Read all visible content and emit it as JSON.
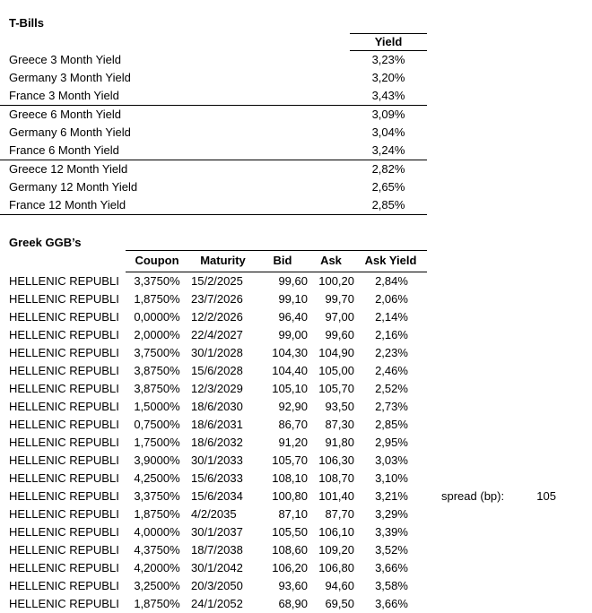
{
  "tbills": {
    "title": "T-Bills",
    "yield_header": "Yield",
    "group_3m": [
      {
        "label": "Greece 3 Month Yield",
        "value": "3,23%"
      },
      {
        "label": "Germany 3 Month Yield",
        "value": "3,20%"
      },
      {
        "label": "France 3 Month Yield",
        "value": "3,43%"
      }
    ],
    "group_6m": [
      {
        "label": "Greece 6 Month Yield",
        "value": "3,09%"
      },
      {
        "label": "Germany 6 Month Yield",
        "value": "3,04%"
      },
      {
        "label": "France 6 Month Yield",
        "value": "3,24%"
      }
    ],
    "group_12m": [
      {
        "label": "Greece 12 Month Yield",
        "value": "2,82%"
      },
      {
        "label": "Germany 12 Month Yield",
        "value": "2,65%"
      },
      {
        "label": "France 12 Month Yield",
        "value": "2,85%"
      }
    ]
  },
  "ggb": {
    "title": "Greek GGB’s",
    "headers": {
      "coupon": "Coupon",
      "maturity": "Maturity",
      "bid": "Bid",
      "ask": "Ask",
      "ask_yield": "Ask Yield"
    },
    "rows": [
      {
        "name": "HELLENIC REPUBLI",
        "coupon": "3,3750%",
        "maturity": "15/2/2025",
        "bid": "99,60",
        "ask": "100,20",
        "ask_yield": "2,84%"
      },
      {
        "name": "HELLENIC REPUBLI",
        "coupon": "1,8750%",
        "maturity": "23/7/2026",
        "bid": "99,10",
        "ask": "99,70",
        "ask_yield": "2,06%"
      },
      {
        "name": "HELLENIC REPUBLI",
        "coupon": "0,0000%",
        "maturity": "12/2/2026",
        "bid": "96,40",
        "ask": "97,00",
        "ask_yield": "2,14%"
      },
      {
        "name": "HELLENIC REPUBLI",
        "coupon": "2,0000%",
        "maturity": "22/4/2027",
        "bid": "99,00",
        "ask": "99,60",
        "ask_yield": "2,16%"
      },
      {
        "name": "HELLENIC REPUBLI",
        "coupon": "3,7500%",
        "maturity": "30/1/2028",
        "bid": "104,30",
        "ask": "104,90",
        "ask_yield": "2,23%"
      },
      {
        "name": "HELLENIC REPUBLI",
        "coupon": "3,8750%",
        "maturity": "15/6/2028",
        "bid": "104,40",
        "ask": "105,00",
        "ask_yield": "2,46%"
      },
      {
        "name": "HELLENIC REPUBLI",
        "coupon": "3,8750%",
        "maturity": "12/3/2029",
        "bid": "105,10",
        "ask": "105,70",
        "ask_yield": "2,52%"
      },
      {
        "name": "HELLENIC REPUBLI",
        "coupon": "1,5000%",
        "maturity": "18/6/2030",
        "bid": "92,90",
        "ask": "93,50",
        "ask_yield": "2,73%"
      },
      {
        "name": "HELLENIC REPUBLI",
        "coupon": "0,7500%",
        "maturity": "18/6/2031",
        "bid": "86,70",
        "ask": "87,30",
        "ask_yield": "2,85%"
      },
      {
        "name": "HELLENIC REPUBLI",
        "coupon": "1,7500%",
        "maturity": "18/6/2032",
        "bid": "91,20",
        "ask": "91,80",
        "ask_yield": "2,95%"
      },
      {
        "name": "HELLENIC REPUBLI",
        "coupon": "3,9000%",
        "maturity": "30/1/2033",
        "bid": "105,70",
        "ask": "106,30",
        "ask_yield": "3,03%"
      },
      {
        "name": "HELLENIC REPUBLI",
        "coupon": "4,2500%",
        "maturity": "15/6/2033",
        "bid": "108,10",
        "ask": "108,70",
        "ask_yield": "3,10%"
      },
      {
        "name": "HELLENIC REPUBLI",
        "coupon": "3,3750%",
        "maturity": "15/6/2034",
        "bid": "100,80",
        "ask": "101,40",
        "ask_yield": "3,21%"
      },
      {
        "name": "HELLENIC REPUBLI",
        "coupon": "1,8750%",
        "maturity": "4/2/2035",
        "bid": "87,10",
        "ask": "87,70",
        "ask_yield": "3,29%"
      },
      {
        "name": "HELLENIC REPUBLI",
        "coupon": "4,0000%",
        "maturity": "30/1/2037",
        "bid": "105,50",
        "ask": "106,10",
        "ask_yield": "3,39%"
      },
      {
        "name": "HELLENIC REPUBLI",
        "coupon": "4,3750%",
        "maturity": "18/7/2038",
        "bid": "108,60",
        "ask": "109,20",
        "ask_yield": "3,52%"
      },
      {
        "name": "HELLENIC REPUBLI",
        "coupon": "4,2000%",
        "maturity": "30/1/2042",
        "bid": "106,20",
        "ask": "106,80",
        "ask_yield": "3,66%"
      },
      {
        "name": "HELLENIC REPUBLI",
        "coupon": "3,2500%",
        "maturity": "20/3/2050",
        "bid": "93,60",
        "ask": "94,60",
        "ask_yield": "3,58%"
      },
      {
        "name": "HELLENIC REPUBLI",
        "coupon": "1,8750%",
        "maturity": "24/1/2052",
        "bid": "68,90",
        "ask": "69,50",
        "ask_yield": "3,66%"
      }
    ]
  },
  "spread": {
    "label": "spread (bp):",
    "value": "105"
  }
}
